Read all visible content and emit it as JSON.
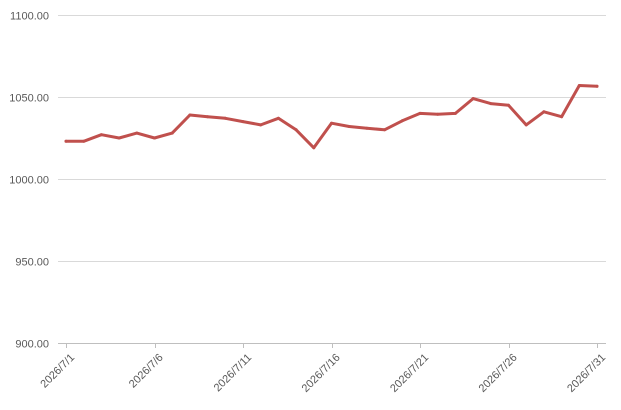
{
  "chart_data": {
    "type": "line",
    "title": "",
    "xlabel": "",
    "ylabel": "",
    "ylim": [
      900,
      1100
    ],
    "yticks": [
      900,
      950,
      1000,
      1050,
      1100
    ],
    "ytick_labels": [
      "900.00",
      "950.00",
      "1000.00",
      "1050.00",
      "1100.00"
    ],
    "grid": true,
    "legend": "none",
    "x": [
      "2026/7/1",
      "2026/7/2",
      "2026/7/3",
      "2026/7/4",
      "2026/7/5",
      "2026/7/6",
      "2026/7/7",
      "2026/7/8",
      "2026/7/9",
      "2026/7/10",
      "2026/7/11",
      "2026/7/12",
      "2026/7/13",
      "2026/7/14",
      "2026/7/15",
      "2026/7/16",
      "2026/7/17",
      "2026/7/18",
      "2026/7/19",
      "2026/7/20",
      "2026/7/21",
      "2026/7/22",
      "2026/7/23",
      "2026/7/24",
      "2026/7/25",
      "2026/7/26",
      "2026/7/27",
      "2026/7/28",
      "2026/7/29",
      "2026/7/30",
      "2026/7/31"
    ],
    "xtick_labels": [
      "2026/7/1",
      "2026/7/6",
      "2026/7/11",
      "2026/7/16",
      "2026/7/21",
      "2026/7/26",
      "2026/7/31"
    ],
    "series": [
      {
        "name": "",
        "color": "#c0504d",
        "values": [
          1023,
          1023,
          1027,
          1025,
          1028,
          1025,
          1028,
          1039,
          1038,
          1037,
          1035,
          1033,
          1037,
          1030,
          1019,
          1034,
          1032,
          1031,
          1030,
          1035.5,
          1040,
          1039.5,
          1040,
          1049,
          1046,
          1045,
          1033,
          1041,
          1038,
          1057,
          1056.5
        ]
      }
    ]
  }
}
